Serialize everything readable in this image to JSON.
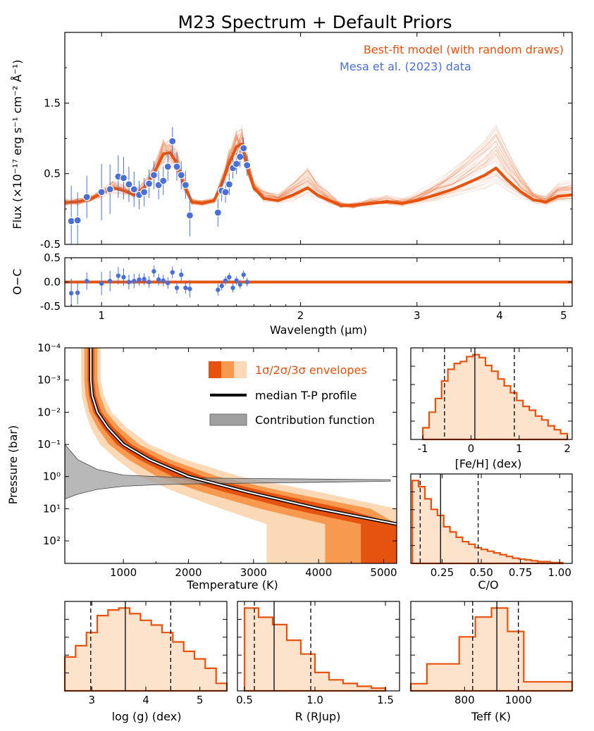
{
  "title": "M23 Spectrum + Default Priors",
  "colors": {
    "model": "#e5530f",
    "data": "#4a6fd8",
    "s1": "#e5530f",
    "s2": "#f79a4f",
    "s3": "#fcd9b6",
    "contrib": "#a0a0a0",
    "hist_fill": "#fde3cc"
  },
  "legend_spec": {
    "model": "Best-fit model (with random draws)",
    "data": "Mesa et al. (2023) data"
  },
  "legend_tp": {
    "envelopes": "1σ/2σ/3σ envelopes",
    "median": "median T-P profile",
    "contrib": "Contribution function"
  },
  "chart_data": [
    {
      "type": "line",
      "name": "spectrum",
      "ylabel": "Flux (×10⁻¹⁷ erg s⁻¹ cm⁻² Å⁻¹)",
      "xscale": "log",
      "xlim": [
        0.88,
        5.15
      ],
      "ylim": [
        -0.5,
        2.5
      ],
      "yticks": [
        "-0.5",
        "0.5",
        "1.5"
      ],
      "model": {
        "x": [
          0.88,
          0.92,
          0.96,
          1.0,
          1.04,
          1.08,
          1.12,
          1.16,
          1.2,
          1.24,
          1.27,
          1.3,
          1.33,
          1.37,
          1.42,
          1.48,
          1.52,
          1.56,
          1.6,
          1.63,
          1.66,
          1.7,
          1.76,
          1.85,
          1.95,
          2.05,
          2.12,
          2.2,
          2.3,
          2.4,
          2.55,
          2.7,
          2.85,
          3.0,
          3.2,
          3.4,
          3.6,
          3.8,
          3.95,
          4.1,
          4.3,
          4.5,
          4.7,
          4.9,
          5.15
        ],
        "y": [
          0.09,
          0.1,
          0.14,
          0.22,
          0.3,
          0.26,
          0.2,
          0.3,
          0.5,
          0.78,
          0.8,
          0.65,
          0.35,
          0.1,
          0.08,
          0.12,
          0.35,
          0.65,
          0.88,
          0.92,
          0.6,
          0.3,
          0.15,
          0.12,
          0.2,
          0.3,
          0.2,
          0.13,
          0.05,
          0.05,
          0.08,
          0.1,
          0.08,
          0.12,
          0.2,
          0.28,
          0.38,
          0.48,
          0.58,
          0.42,
          0.25,
          0.13,
          0.1,
          0.18,
          0.2
        ]
      },
      "data": {
        "x": [
          0.9,
          0.92,
          0.95,
          1.0,
          1.03,
          1.06,
          1.08,
          1.1,
          1.12,
          1.14,
          1.16,
          1.18,
          1.2,
          1.22,
          1.24,
          1.26,
          1.28,
          1.3,
          1.32,
          1.34,
          1.36,
          1.5,
          1.52,
          1.54,
          1.56,
          1.58,
          1.6,
          1.62,
          1.64,
          1.66
        ],
        "y": [
          -0.17,
          -0.16,
          0.17,
          0.24,
          0.28,
          0.46,
          0.44,
          0.35,
          0.28,
          0.2,
          0.24,
          0.36,
          0.48,
          0.34,
          0.4,
          0.6,
          0.96,
          0.6,
          0.48,
          0.34,
          -0.09,
          -0.05,
          0.26,
          0.24,
          0.35,
          0.58,
          0.64,
          0.74,
          0.86,
          0.62
        ],
        "err": [
          0.5,
          0.4,
          0.3,
          0.4,
          0.35,
          0.3,
          0.3,
          0.25,
          0.25,
          0.2,
          0.2,
          0.2,
          0.2,
          0.2,
          0.2,
          0.2,
          0.2,
          0.2,
          0.2,
          0.2,
          0.3,
          0.2,
          0.15,
          0.15,
          0.15,
          0.15,
          0.15,
          0.15,
          0.15,
          0.15
        ]
      }
    },
    {
      "type": "scatter",
      "name": "residuals",
      "ylabel": "O−C",
      "xlabel": "Wavelength (μm)",
      "xscale": "log",
      "xlim": [
        0.88,
        5.15
      ],
      "ylim": [
        -0.5,
        0.5
      ],
      "yticks": [
        "-0.5",
        "0.0",
        "0.5"
      ],
      "xticks": [
        {
          "v": 1,
          "t": "1"
        },
        {
          "v": 2,
          "t": "2"
        },
        {
          "v": 3,
          "t": "3"
        },
        {
          "v": 4,
          "t": "4"
        },
        {
          "v": 5,
          "t": "5"
        }
      ],
      "x": [
        0.9,
        0.92,
        0.95,
        1.0,
        1.03,
        1.06,
        1.08,
        1.1,
        1.12,
        1.14,
        1.16,
        1.18,
        1.2,
        1.22,
        1.24,
        1.26,
        1.28,
        1.3,
        1.32,
        1.34,
        1.36,
        1.5,
        1.52,
        1.54,
        1.56,
        1.58,
        1.6,
        1.62,
        1.64,
        1.66
      ],
      "y": [
        -0.23,
        -0.22,
        0.02,
        -0.03,
        0.02,
        0.13,
        0.1,
        0.0,
        0.02,
        0.05,
        0.06,
        0.0,
        0.22,
        0.05,
        0.03,
        -0.02,
        0.2,
        -0.12,
        0.15,
        -0.12,
        -0.14,
        -0.16,
        -0.08,
        0.03,
        0.1,
        -0.12,
        0.03,
        -0.05,
        0.15,
        0.0
      ]
    },
    {
      "type": "area",
      "name": "tp-profile",
      "xlabel": "Temperature (K)",
      "ylabel": "Pressure (bar)",
      "xlim": [
        100,
        5200
      ],
      "yscale": "log",
      "ylim": [
        0.0001,
        500
      ],
      "xticks": [
        "1000",
        "2000",
        "3000",
        "4000",
        "5000"
      ],
      "yticks": [
        {
          "v": 0.0001,
          "t": "10⁻⁴"
        },
        {
          "v": 0.001,
          "t": "10⁻³"
        },
        {
          "v": 0.01,
          "t": "10⁻²"
        },
        {
          "v": 0.1,
          "t": "10⁻¹"
        },
        {
          "v": 1,
          "t": "10⁰"
        },
        {
          "v": 10,
          "t": "10¹"
        },
        {
          "v": 100,
          "t": "10²"
        }
      ],
      "median": {
        "T": [
          500,
          500,
          520,
          600,
          760,
          1000,
          1400,
          2000,
          2900,
          4000,
          5200
        ],
        "P": [
          0.0001,
          0.001,
          0.003,
          0.01,
          0.03,
          0.1,
          0.3,
          1,
          3,
          10,
          30
        ]
      },
      "envelopes": [
        {
          "sigma": 3,
          "lower": [
            350,
            350,
            360,
            420,
            500,
            640,
            900,
            1250,
            1800,
            2500,
            3200
          ],
          "upper": [
            650,
            650,
            700,
            820,
            1050,
            1400,
            1950,
            2800,
            4000,
            5200,
            5200
          ]
        },
        {
          "sigma": 2,
          "lower": [
            400,
            400,
            420,
            480,
            600,
            780,
            1080,
            1520,
            2200,
            3100,
            4100
          ],
          "upper": [
            600,
            600,
            640,
            740,
            940,
            1240,
            1720,
            2450,
            3500,
            4800,
            5200
          ]
        },
        {
          "sigma": 1,
          "lower": [
            450,
            450,
            470,
            540,
            680,
            890,
            1240,
            1760,
            2550,
            3550,
            4650
          ],
          "upper": [
            550,
            550,
            575,
            665,
            850,
            1120,
            1560,
            2230,
            3200,
            4400,
            5200
          ]
        }
      ],
      "contribution": {
        "T": [
          100,
          300,
          600,
          1000,
          1500,
          2000,
          3000,
          4000,
          5100
        ],
        "P_top": [
          0.1,
          0.3,
          0.6,
          0.9,
          1.0,
          1.1,
          1.15,
          1.2,
          1.25
        ],
        "P_bot": [
          5,
          3.5,
          2.5,
          2.0,
          1.8,
          1.7,
          1.6,
          1.5,
          1.4
        ]
      }
    },
    {
      "type": "bar",
      "name": "feh",
      "xlabel": "[Fe/H] (dex)",
      "xlim": [
        -1.25,
        2.1
      ],
      "xticks": [
        "-1",
        "0",
        "1",
        "2"
      ],
      "bins": [
        -1.0,
        -0.87,
        -0.74,
        -0.61,
        -0.48,
        -0.35,
        -0.22,
        -0.09,
        0.04,
        0.17,
        0.3,
        0.43,
        0.56,
        0.69,
        0.82,
        0.95,
        1.08,
        1.21,
        1.34,
        1.47,
        1.6,
        1.73,
        1.86,
        2.0
      ],
      "counts": [
        0.12,
        0.28,
        0.42,
        0.6,
        0.72,
        0.78,
        0.8,
        0.85,
        0.87,
        0.84,
        0.76,
        0.7,
        0.62,
        0.55,
        0.48,
        0.4,
        0.34,
        0.3,
        0.24,
        0.2,
        0.14,
        0.1,
        0.06
      ],
      "median": 0.08,
      "low": -0.55,
      "high": 0.9
    },
    {
      "type": "bar",
      "name": "co",
      "xlabel": "C/O",
      "xlim": [
        0.05,
        1.08
      ],
      "xticks": [
        "0.25",
        "0.50",
        "0.75",
        "1.00"
      ],
      "bins": [
        0.06,
        0.1,
        0.14,
        0.18,
        0.22,
        0.26,
        0.3,
        0.34,
        0.38,
        0.42,
        0.46,
        0.5,
        0.54,
        0.58,
        0.62,
        0.66,
        0.7,
        0.74,
        0.78,
        0.82,
        0.86,
        0.9,
        0.94,
        0.98,
        1.02
      ],
      "counts": [
        0.95,
        0.88,
        0.74,
        0.62,
        0.55,
        0.42,
        0.36,
        0.3,
        0.25,
        0.22,
        0.18,
        0.16,
        0.14,
        0.12,
        0.1,
        0.08,
        0.06,
        0.05,
        0.04,
        0.03,
        0.02,
        0.02,
        0.01,
        0.01
      ],
      "median": 0.24,
      "low": 0.11,
      "high": 0.48
    },
    {
      "type": "bar",
      "name": "logg",
      "xlabel": "log (g) (dex)",
      "xlim": [
        2.5,
        5.5
      ],
      "xticks": [
        "3",
        "4",
        "5"
      ],
      "bins": [
        2.5,
        2.7,
        2.9,
        3.1,
        3.3,
        3.5,
        3.7,
        3.9,
        4.1,
        4.3,
        4.5,
        4.7,
        4.9,
        5.1,
        5.3,
        5.5
      ],
      "counts": [
        0.36,
        0.48,
        0.62,
        0.8,
        0.86,
        0.88,
        0.82,
        0.75,
        0.7,
        0.62,
        0.52,
        0.42,
        0.34,
        0.24,
        0.08
      ],
      "median": 3.62,
      "low": 2.98,
      "high": 4.46
    },
    {
      "type": "bar",
      "name": "radius",
      "xlabel": "R (RJup)",
      "xlim": [
        0.45,
        1.6
      ],
      "xticks": [
        "0.5",
        "1.0",
        "1.5"
      ],
      "bins": [
        0.5,
        0.6,
        0.7,
        0.8,
        0.9,
        1.0,
        1.1,
        1.2,
        1.3,
        1.4,
        1.5
      ],
      "counts": [
        0.9,
        0.8,
        0.72,
        0.55,
        0.4,
        0.2,
        0.12,
        0.08,
        0.05,
        0.03
      ],
      "median": 0.71,
      "low": 0.57,
      "high": 0.97
    },
    {
      "type": "bar",
      "name": "teff",
      "xlabel": "Teff (K)",
      "xlim": [
        600,
        1200
      ],
      "xticks": [
        "800",
        "1000"
      ],
      "bins": [
        600,
        660,
        720,
        780,
        840,
        900,
        960,
        1020,
        1080,
        1140,
        1200
      ],
      "counts": [
        0.08,
        0.3,
        0.3,
        0.6,
        0.82,
        0.92,
        0.66,
        0.1,
        0.1,
        0.1
      ],
      "median": 920,
      "low": 830,
      "high": 1000
    }
  ]
}
